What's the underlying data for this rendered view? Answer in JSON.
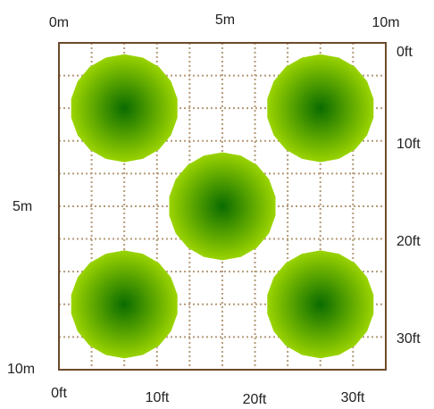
{
  "diagram": {
    "type": "planting-plan-grid",
    "colors": {
      "border": "#6b4a2b",
      "grid_dots": "#b59a78",
      "canopy_center": "#0a6b00",
      "canopy_edge": "#9bd400"
    },
    "grid": {
      "width_m": 10,
      "height_m": 10,
      "minor_spacing_ft": 3.28
    },
    "metric_labels": {
      "top": [
        "0m",
        "5m",
        "10m"
      ],
      "left": [
        "5m",
        "10m"
      ]
    },
    "imperial_labels": {
      "right": [
        "0ft",
        "10ft",
        "20ft",
        "30ft"
      ],
      "bottom": [
        "0ft",
        "10ft",
        "20ft",
        "30ft"
      ]
    },
    "trees": [
      {
        "name": "tree-top-left",
        "x_m": 2.0,
        "y_m": 2.0,
        "radius_m": 1.65
      },
      {
        "name": "tree-top-right",
        "x_m": 8.0,
        "y_m": 2.0,
        "radius_m": 1.65
      },
      {
        "name": "tree-center",
        "x_m": 5.0,
        "y_m": 5.0,
        "radius_m": 1.65
      },
      {
        "name": "tree-bottom-left",
        "x_m": 2.0,
        "y_m": 8.0,
        "radius_m": 1.65
      },
      {
        "name": "tree-bottom-right",
        "x_m": 8.0,
        "y_m": 8.0,
        "radius_m": 1.65
      }
    ]
  }
}
